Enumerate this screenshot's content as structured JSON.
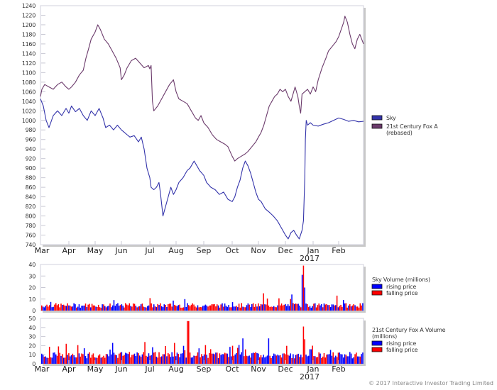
{
  "chart_data": [
    {
      "type": "line",
      "title": "",
      "xlabel": "",
      "ylabel": "",
      "ylim": [
        740,
        1240
      ],
      "yticks": [
        740,
        760,
        780,
        800,
        820,
        840,
        860,
        880,
        900,
        920,
        940,
        960,
        980,
        1000,
        1020,
        1040,
        1060,
        1080,
        1100,
        1120,
        1140,
        1160,
        1180,
        1200,
        1220,
        1240
      ],
      "x_tick_labels": [
        "Mar",
        "Apr",
        "May",
        "Jun",
        "Jul",
        "Aug",
        "Sep",
        "Oct",
        "Nov",
        "Dec",
        "Jan",
        "Feb"
      ],
      "x_year_label": "2017",
      "grid": false,
      "legend_position": "right",
      "series": [
        {
          "name": "Sky",
          "color": "#3333aa",
          "points": [
            [
              0.0,
              1045
            ],
            [
              0.1,
              1030
            ],
            [
              0.2,
              1000
            ],
            [
              0.3,
              985
            ],
            [
              0.45,
              1010
            ],
            [
              0.6,
              1020
            ],
            [
              0.75,
              1010
            ],
            [
              0.9,
              1025
            ],
            [
              1.0,
              1015
            ],
            [
              1.1,
              1030
            ],
            [
              1.25,
              1018
            ],
            [
              1.4,
              1025
            ],
            [
              1.55,
              1010
            ],
            [
              1.7,
              1000
            ],
            [
              1.85,
              1020
            ],
            [
              2.0,
              1010
            ],
            [
              2.15,
              1025
            ],
            [
              2.3,
              1005
            ],
            [
              2.4,
              985
            ],
            [
              2.55,
              990
            ],
            [
              2.7,
              980
            ],
            [
              2.85,
              990
            ],
            [
              3.0,
              980
            ],
            [
              3.1,
              975
            ],
            [
              3.2,
              970
            ],
            [
              3.3,
              965
            ],
            [
              3.45,
              968
            ],
            [
              3.6,
              955
            ],
            [
              3.7,
              965
            ],
            [
              3.8,
              940
            ],
            [
              3.9,
              900
            ],
            [
              4.0,
              880
            ],
            [
              4.05,
              860
            ],
            [
              4.15,
              855
            ],
            [
              4.25,
              860
            ],
            [
              4.35,
              870
            ],
            [
              4.4,
              850
            ],
            [
              4.5,
              800
            ],
            [
              4.6,
              820
            ],
            [
              4.7,
              840
            ],
            [
              4.8,
              860
            ],
            [
              4.9,
              845
            ],
            [
              5.0,
              855
            ],
            [
              5.1,
              870
            ],
            [
              5.25,
              880
            ],
            [
              5.4,
              895
            ],
            [
              5.5,
              900
            ],
            [
              5.65,
              915
            ],
            [
              5.75,
              905
            ],
            [
              5.85,
              895
            ],
            [
              6.0,
              885
            ],
            [
              6.1,
              870
            ],
            [
              6.25,
              860
            ],
            [
              6.4,
              855
            ],
            [
              6.55,
              845
            ],
            [
              6.7,
              850
            ],
            [
              6.85,
              835
            ],
            [
              7.0,
              830
            ],
            [
              7.1,
              840
            ],
            [
              7.2,
              860
            ],
            [
              7.3,
              875
            ],
            [
              7.4,
              900
            ],
            [
              7.5,
              915
            ],
            [
              7.6,
              905
            ],
            [
              7.7,
              890
            ],
            [
              7.8,
              870
            ],
            [
              7.9,
              850
            ],
            [
              8.0,
              835
            ],
            [
              8.1,
              830
            ],
            [
              8.25,
              815
            ],
            [
              8.4,
              808
            ],
            [
              8.55,
              800
            ],
            [
              8.7,
              790
            ],
            [
              8.85,
              775
            ],
            [
              9.0,
              760
            ],
            [
              9.1,
              752
            ],
            [
              9.2,
              765
            ],
            [
              9.3,
              770
            ],
            [
              9.4,
              760
            ],
            [
              9.5,
              752
            ],
            [
              9.6,
              770
            ],
            [
              9.65,
              790
            ],
            [
              9.7,
              880
            ],
            [
              9.72,
              960
            ],
            [
              9.75,
              1000
            ],
            [
              9.8,
              990
            ],
            [
              9.9,
              995
            ],
            [
              10.0,
              990
            ],
            [
              10.2,
              988
            ],
            [
              10.4,
              992
            ],
            [
              10.6,
              995
            ],
            [
              10.8,
              1000
            ],
            [
              11.0,
              1005
            ],
            [
              11.2,
              1002
            ],
            [
              11.4,
              998
            ],
            [
              11.6,
              1000
            ],
            [
              11.8,
              997
            ],
            [
              12.0,
              998
            ]
          ]
        },
        {
          "name": "21st Century Fox A (rebased)",
          "color": "#6b3a6b",
          "points": [
            [
              0.0,
              1050
            ],
            [
              0.05,
              1065
            ],
            [
              0.15,
              1075
            ],
            [
              0.3,
              1070
            ],
            [
              0.45,
              1065
            ],
            [
              0.6,
              1075
            ],
            [
              0.75,
              1080
            ],
            [
              0.9,
              1070
            ],
            [
              1.0,
              1065
            ],
            [
              1.1,
              1070
            ],
            [
              1.25,
              1080
            ],
            [
              1.4,
              1095
            ],
            [
              1.55,
              1105
            ],
            [
              1.65,
              1130
            ],
            [
              1.75,
              1150
            ],
            [
              1.85,
              1170
            ],
            [
              2.0,
              1185
            ],
            [
              2.1,
              1200
            ],
            [
              2.2,
              1190
            ],
            [
              2.35,
              1170
            ],
            [
              2.5,
              1160
            ],
            [
              2.65,
              1145
            ],
            [
              2.8,
              1130
            ],
            [
              2.95,
              1110
            ],
            [
              3.0,
              1085
            ],
            [
              3.1,
              1095
            ],
            [
              3.2,
              1110
            ],
            [
              3.35,
              1125
            ],
            [
              3.5,
              1130
            ],
            [
              3.65,
              1120
            ],
            [
              3.8,
              1110
            ],
            [
              3.95,
              1115
            ],
            [
              4.0,
              1108
            ],
            [
              4.05,
              1115
            ],
            [
              4.1,
              1040
            ],
            [
              4.15,
              1020
            ],
            [
              4.3,
              1030
            ],
            [
              4.45,
              1045
            ],
            [
              4.6,
              1060
            ],
            [
              4.75,
              1075
            ],
            [
              4.9,
              1085
            ],
            [
              5.0,
              1060
            ],
            [
              5.1,
              1045
            ],
            [
              5.25,
              1040
            ],
            [
              5.4,
              1035
            ],
            [
              5.55,
              1020
            ],
            [
              5.7,
              1005
            ],
            [
              5.8,
              1000
            ],
            [
              5.9,
              1010
            ],
            [
              6.0,
              995
            ],
            [
              6.15,
              985
            ],
            [
              6.3,
              970
            ],
            [
              6.45,
              960
            ],
            [
              6.6,
              955
            ],
            [
              6.75,
              950
            ],
            [
              6.85,
              945
            ],
            [
              7.0,
              925
            ],
            [
              7.1,
              915
            ],
            [
              7.2,
              920
            ],
            [
              7.35,
              925
            ],
            [
              7.5,
              930
            ],
            [
              7.6,
              935
            ],
            [
              7.75,
              945
            ],
            [
              7.9,
              955
            ],
            [
              8.0,
              965
            ],
            [
              8.1,
              975
            ],
            [
              8.2,
              990
            ],
            [
              8.3,
              1010
            ],
            [
              8.4,
              1030
            ],
            [
              8.5,
              1040
            ],
            [
              8.6,
              1050
            ],
            [
              8.7,
              1055
            ],
            [
              8.8,
              1065
            ],
            [
              8.9,
              1060
            ],
            [
              9.0,
              1065
            ],
            [
              9.1,
              1050
            ],
            [
              9.2,
              1040
            ],
            [
              9.3,
              1060
            ],
            [
              9.35,
              1070
            ],
            [
              9.45,
              1050
            ],
            [
              9.5,
              1030
            ],
            [
              9.55,
              1015
            ],
            [
              9.6,
              1055
            ],
            [
              9.7,
              1060
            ],
            [
              9.8,
              1065
            ],
            [
              9.9,
              1055
            ],
            [
              10.0,
              1070
            ],
            [
              10.1,
              1060
            ],
            [
              10.2,
              1085
            ],
            [
              10.35,
              1110
            ],
            [
              10.5,
              1130
            ],
            [
              10.6,
              1145
            ],
            [
              10.75,
              1155
            ],
            [
              10.9,
              1165
            ],
            [
              11.0,
              1175
            ],
            [
              11.1,
              1190
            ],
            [
              11.2,
              1205
            ],
            [
              11.25,
              1218
            ],
            [
              11.35,
              1205
            ],
            [
              11.45,
              1180
            ],
            [
              11.55,
              1160
            ],
            [
              11.65,
              1150
            ],
            [
              11.75,
              1170
            ],
            [
              11.85,
              1180
            ],
            [
              12.0,
              1160
            ]
          ]
        }
      ]
    },
    {
      "type": "bar",
      "title": "Sky Volume (millions)",
      "ylim": [
        0,
        40
      ],
      "yticks": [
        0,
        10,
        20,
        30,
        40
      ],
      "x_tick_labels": [],
      "legend_position": "right",
      "series": [
        {
          "name": "rising price",
          "color": "#0000ff"
        },
        {
          "name": "falling price",
          "color": "#ff0000"
        }
      ],
      "notable_peaks": [
        {
          "month_pos": 9.75,
          "value": 39,
          "series": "falling price"
        },
        {
          "month_pos": 9.7,
          "value": 31,
          "series": "rising price"
        },
        {
          "month_pos": 9.8,
          "value": 20,
          "series": "rising price"
        },
        {
          "month_pos": 9.3,
          "value": 14,
          "series": "rising price"
        },
        {
          "month_pos": 8.25,
          "value": 15,
          "series": "falling price"
        },
        {
          "month_pos": 11.0,
          "value": 13,
          "series": "falling price"
        }
      ],
      "typical_range": [
        2,
        8
      ]
    },
    {
      "type": "bar",
      "title": "21st Century Fox A Volume (millions)",
      "ylim": [
        0,
        50
      ],
      "yticks": [
        0,
        10,
        20,
        30,
        40,
        50
      ],
      "x_tick_labels": [
        "Mar",
        "Apr",
        "May",
        "Jun",
        "Jul",
        "Aug",
        "Sep",
        "Oct",
        "Nov",
        "Dec",
        "Jan",
        "Feb"
      ],
      "x_year_label": "2017",
      "legend_position": "right",
      "series": [
        {
          "name": "rising price",
          "color": "#0000ff"
        },
        {
          "name": "falling price",
          "color": "#ff0000"
        }
      ],
      "notable_peaks": [
        {
          "month_pos": 5.45,
          "value": 47,
          "series": "falling price"
        },
        {
          "month_pos": 9.75,
          "value": 41,
          "series": "falling price"
        },
        {
          "month_pos": 7.5,
          "value": 28,
          "series": "rising price"
        },
        {
          "month_pos": 9.8,
          "value": 27,
          "series": "falling price"
        },
        {
          "month_pos": 3.85,
          "value": 24,
          "series": "falling price"
        },
        {
          "month_pos": 4.95,
          "value": 23,
          "series": "falling price"
        },
        {
          "month_pos": 2.65,
          "value": 23,
          "series": "rising price"
        },
        {
          "month_pos": 0.9,
          "value": 22,
          "series": "falling price"
        },
        {
          "month_pos": 8.45,
          "value": 28,
          "series": "rising price"
        }
      ],
      "typical_range": [
        5,
        15
      ]
    }
  ],
  "main_chart": {
    "legend": [
      {
        "label": "Sky",
        "color": "#3333aa"
      },
      {
        "label": "21st Century Fox A",
        "label2": "(rebased)",
        "color": "#6b3a6b"
      }
    ]
  },
  "sky_volume": {
    "legend_title": "Sky Volume (millions)",
    "legend": [
      {
        "label": "rising price",
        "color": "#0000ff"
      },
      {
        "label": "falling price",
        "color": "#ff0000"
      }
    ]
  },
  "fox_volume": {
    "legend_title": "21st Century Fox A Volume",
    "legend_title2": "(millions)",
    "legend": [
      {
        "label": "rising price",
        "color": "#0000ff"
      },
      {
        "label": "falling price",
        "color": "#ff0000"
      }
    ]
  },
  "copyright": "© 2017 Interactive Investor Trading Limited"
}
